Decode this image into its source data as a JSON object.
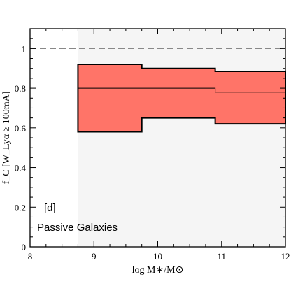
{
  "chart_data": {
    "type": "area",
    "xlabel": "log M∗/M⊙",
    "ylabel": "f_C [W_Lyα ≥ 100mA]",
    "xlim": [
      8,
      12
    ],
    "ylim": [
      0,
      1.1
    ],
    "x_ticks": [
      8,
      9,
      10,
      11,
      12
    ],
    "y_ticks": [
      0,
      0.2,
      0.4,
      0.6,
      0.8,
      1
    ],
    "x_tick_labels": [
      "8",
      "9",
      "10",
      "11",
      "12"
    ],
    "y_tick_labels": [
      "0",
      "0.2",
      "0.4",
      "0.6",
      "0.8",
      "1"
    ],
    "reference_line": {
      "y": 1.0,
      "style": "dashed",
      "color": "#888888"
    },
    "bins": [
      {
        "x_start": 8.75,
        "x_end": 9.75,
        "lower": 0.58,
        "median": 0.8,
        "upper": 0.92
      },
      {
        "x_start": 9.75,
        "x_end": 10.9,
        "lower": 0.65,
        "median": 0.8,
        "upper": 0.9
      },
      {
        "x_start": 10.9,
        "x_end": 12.0,
        "lower": 0.62,
        "median": 0.78,
        "upper": 0.885
      }
    ],
    "band_color": "#ff7468",
    "background_region": {
      "x_start": 8.75,
      "x_end": 12.0,
      "color": "#f5f5f5"
    },
    "annotations": {
      "panel_label": "[d]",
      "sample_label": "Passive Galaxies"
    },
    "grid": false,
    "legend": "none"
  }
}
